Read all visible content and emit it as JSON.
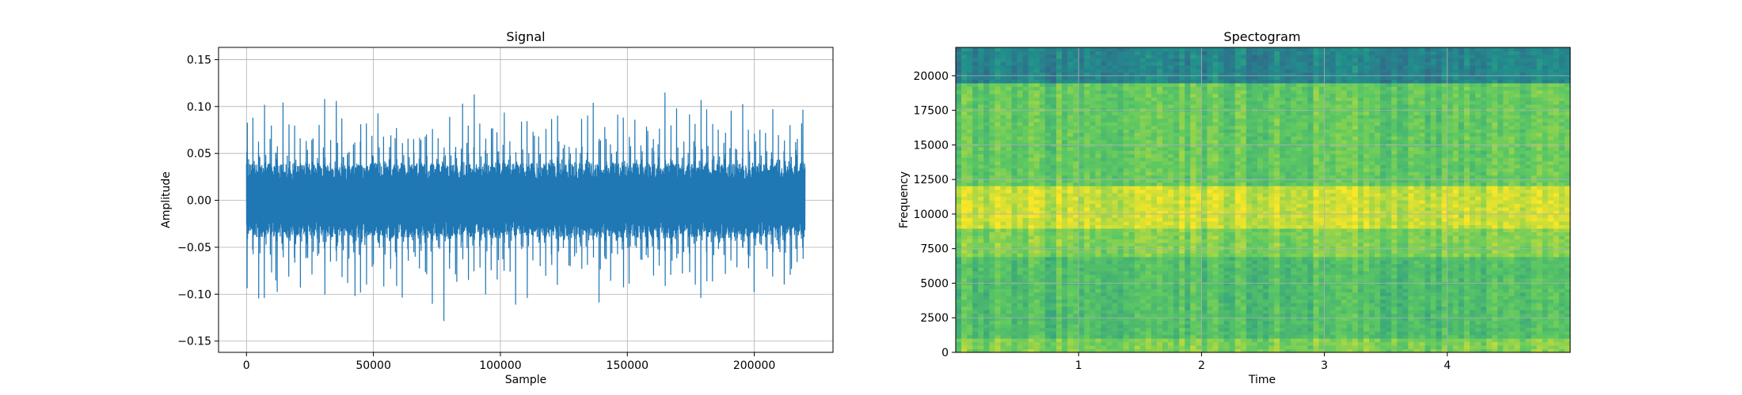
{
  "chart_data": [
    {
      "type": "line",
      "title": "Signal",
      "xlabel": "Sample",
      "ylabel": "Amplitude",
      "xlim": [
        -11000,
        231000
      ],
      "ylim": [
        -0.162,
        0.163
      ],
      "xticks": [
        0,
        50000,
        100000,
        150000,
        200000
      ],
      "xtick_labels": [
        "0",
        "50000",
        "100000",
        "150000",
        "200000"
      ],
      "yticks": [
        -0.15,
        -0.1,
        -0.05,
        0.0,
        0.05,
        0.1,
        0.15
      ],
      "ytick_labels": [
        "−0.15",
        "−0.10",
        "−0.05",
        "0.00",
        "0.05",
        "0.10",
        "0.15"
      ],
      "grid": true,
      "color": "#1f77b4",
      "series": [
        {
          "x_range": [
            0,
            220000
          ],
          "approx_envelope": {
            "dense_band": [
              -0.04,
              0.04
            ],
            "typical_peaks": [
              -0.12,
              0.13
            ],
            "max": 0.15,
            "min": -0.148
          }
        }
      ]
    },
    {
      "type": "heatmap",
      "title": "Spectogram",
      "xlabel": "Time",
      "ylabel": "Frequency",
      "xlim": [
        0,
        5.0
      ],
      "ylim": [
        0,
        22050
      ],
      "xticks": [
        1,
        2,
        3,
        4
      ],
      "xtick_labels": [
        "1",
        "2",
        "3",
        "4"
      ],
      "yticks": [
        0,
        2500,
        5000,
        7500,
        10000,
        12500,
        15000,
        17500,
        20000
      ],
      "ytick_labels": [
        "0",
        "2500",
        "5000",
        "7500",
        "10000",
        "12500",
        "15000",
        "17500",
        "20000"
      ],
      "grid": true,
      "colormap": "viridis",
      "approx_band_intensity": [
        {
          "freq_range": [
            0,
            1000
          ],
          "level": 0.8
        },
        {
          "freq_range": [
            1000,
            7000
          ],
          "level": 0.7
        },
        {
          "freq_range": [
            7000,
            9000
          ],
          "level": 0.8
        },
        {
          "freq_range": [
            9000,
            12000
          ],
          "level": 0.92
        },
        {
          "freq_range": [
            12000,
            19500
          ],
          "level": 0.75
        },
        {
          "freq_range": [
            19500,
            22050
          ],
          "level": 0.45
        }
      ]
    }
  ]
}
